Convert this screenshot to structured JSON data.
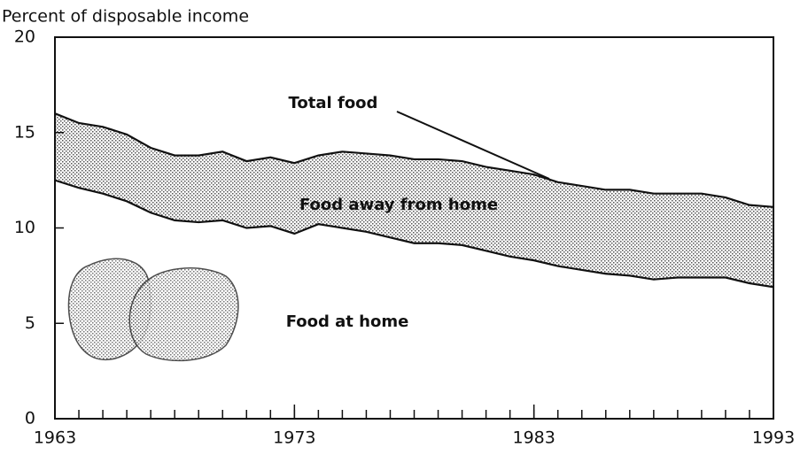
{
  "chart_data": {
    "type": "stacked_area",
    "ylabel": "Percent of disposable income",
    "x": [
      1963,
      1964,
      1965,
      1966,
      1967,
      1968,
      1969,
      1970,
      1971,
      1972,
      1973,
      1974,
      1975,
      1976,
      1977,
      1978,
      1979,
      1980,
      1981,
      1982,
      1983,
      1984,
      1985,
      1986,
      1987,
      1988,
      1989,
      1990,
      1991,
      1992,
      1993
    ],
    "series": [
      {
        "name": "Food at home",
        "color": "#ffffff",
        "values": [
          12.5,
          12.1,
          11.8,
          11.4,
          10.8,
          10.4,
          10.3,
          10.4,
          10.0,
          10.1,
          9.7,
          10.2,
          10.0,
          9.8,
          9.5,
          9.2,
          9.2,
          9.1,
          8.8,
          8.5,
          8.3,
          8.0,
          7.8,
          7.6,
          7.5,
          7.3,
          7.4,
          7.4,
          7.4,
          7.1,
          6.9
        ]
      },
      {
        "name": "Food away from home",
        "color": "#9a9a9a",
        "values": [
          3.5,
          3.4,
          3.5,
          3.5,
          3.4,
          3.4,
          3.5,
          3.6,
          3.5,
          3.6,
          3.7,
          3.6,
          4.0,
          4.1,
          4.3,
          4.4,
          4.4,
          4.4,
          4.4,
          4.5,
          4.5,
          4.4,
          4.4,
          4.4,
          4.5,
          4.5,
          4.4,
          4.4,
          4.2,
          4.1,
          4.2
        ]
      }
    ],
    "annotations": [
      {
        "text": "Total food"
      }
    ],
    "xlim": [
      1963,
      1993
    ],
    "xticks": [
      1963,
      1973,
      1983,
      1993
    ],
    "ylim": [
      0,
      20
    ],
    "yticks": [
      0,
      5,
      10,
      15,
      20
    ]
  }
}
